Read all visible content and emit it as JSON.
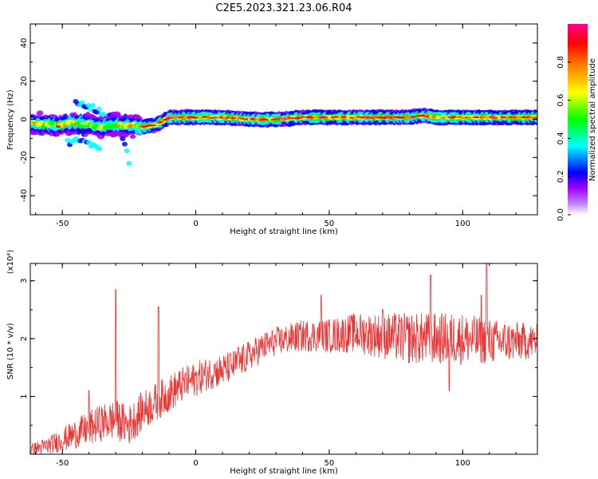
{
  "figure": {
    "title": "C2E5.2023.321.23.06.R04"
  },
  "chart_data": [
    {
      "type": "heatmap",
      "xlabel": "Height of straight line (km)",
      "ylabel": "Frequency (Hz)",
      "xlim": [
        -62,
        128
      ],
      "ylim": [
        -50,
        50
      ],
      "xticks": [
        -50,
        0,
        50,
        100
      ],
      "yticks": [
        -40,
        -20,
        0,
        20,
        40
      ],
      "colorbar": {
        "label": "Normalized spectral amplitude",
        "range": [
          0,
          1
        ],
        "ticks": [
          "0.0",
          "0.2",
          "0.4",
          "0.6",
          "0.8"
        ],
        "colormap": [
          "#ffffff",
          "#9f00ff",
          "#0000ff",
          "#00ffff",
          "#00ff00",
          "#ffff00",
          "#ff7f00",
          "#ff0000",
          "#ff0090"
        ]
      },
      "ridge": {
        "x": [
          -62,
          -55,
          -50,
          -45,
          -40,
          -35,
          -30,
          -25,
          -20,
          -15,
          -10,
          -5,
          0,
          10,
          20,
          30,
          40,
          50,
          60,
          70,
          80,
          85,
          90,
          100,
          110,
          120,
          128
        ],
        "y": [
          -2,
          -3,
          -3,
          -2,
          -3,
          -4,
          -3,
          -3,
          -4,
          -3,
          1,
          1,
          1,
          1,
          0,
          0,
          1,
          1,
          1,
          1,
          1,
          2,
          1,
          1,
          1,
          1,
          1
        ]
      },
      "side_features": [
        {
          "x": [
            -45,
            -40,
            -37,
            -33,
            -28,
            -25
          ],
          "y": [
            8,
            7,
            5,
            2,
            -6,
            -22
          ]
        },
        {
          "x": [
            -48,
            -44,
            -40,
            -36
          ],
          "y": [
            -12,
            -11,
            -13,
            -14
          ]
        }
      ]
    },
    {
      "type": "line",
      "xlabel": "Height of straight line (km)",
      "ylabel": "SNR (10 * v/v)",
      "multiplier_label": "(x10⁴)",
      "xlim": [
        -62,
        128
      ],
      "ylim": [
        0,
        3.3
      ],
      "xticks": [
        -50,
        0,
        50,
        100
      ],
      "yticks": [
        1,
        2,
        3
      ],
      "color": "#ee3333",
      "trend": {
        "x": [
          -62,
          -55,
          -50,
          -45,
          -40,
          -35,
          -30,
          -25,
          -20,
          -15,
          -10,
          -5,
          0,
          5,
          10,
          15,
          20,
          25,
          30,
          35,
          40,
          50,
          60,
          70,
          80,
          90,
          100,
          110,
          120,
          128
        ],
        "y": [
          0.08,
          0.15,
          0.25,
          0.35,
          0.45,
          0.55,
          0.6,
          0.5,
          0.75,
          0.9,
          1.05,
          1.2,
          1.3,
          1.4,
          1.45,
          1.55,
          1.7,
          1.85,
          1.95,
          2.0,
          2.05,
          2.05,
          2.1,
          2.05,
          2.0,
          2.0,
          2.0,
          1.95,
          1.95,
          1.95
        ]
      },
      "noise": {
        "x": [
          -62,
          -40,
          -30,
          -20,
          0,
          30,
          50,
          80,
          100,
          128
        ],
        "amplitude": [
          0.1,
          0.3,
          0.35,
          0.35,
          0.3,
          0.25,
          0.3,
          0.45,
          0.45,
          0.3
        ]
      },
      "spikes": [
        {
          "x": -30,
          "y": 2.85
        },
        {
          "x": -14,
          "y": 2.55
        },
        {
          "x": -40,
          "y": 1.1
        },
        {
          "x": 7,
          "y": 1.55
        },
        {
          "x": 16,
          "y": 1.85
        },
        {
          "x": 47,
          "y": 2.75
        },
        {
          "x": 70,
          "y": 2.5
        },
        {
          "x": 88,
          "y": 3.1
        },
        {
          "x": 95,
          "y": 1.1
        },
        {
          "x": 107,
          "y": 2.75
        },
        {
          "x": 109,
          "y": 3.3
        }
      ]
    }
  ]
}
